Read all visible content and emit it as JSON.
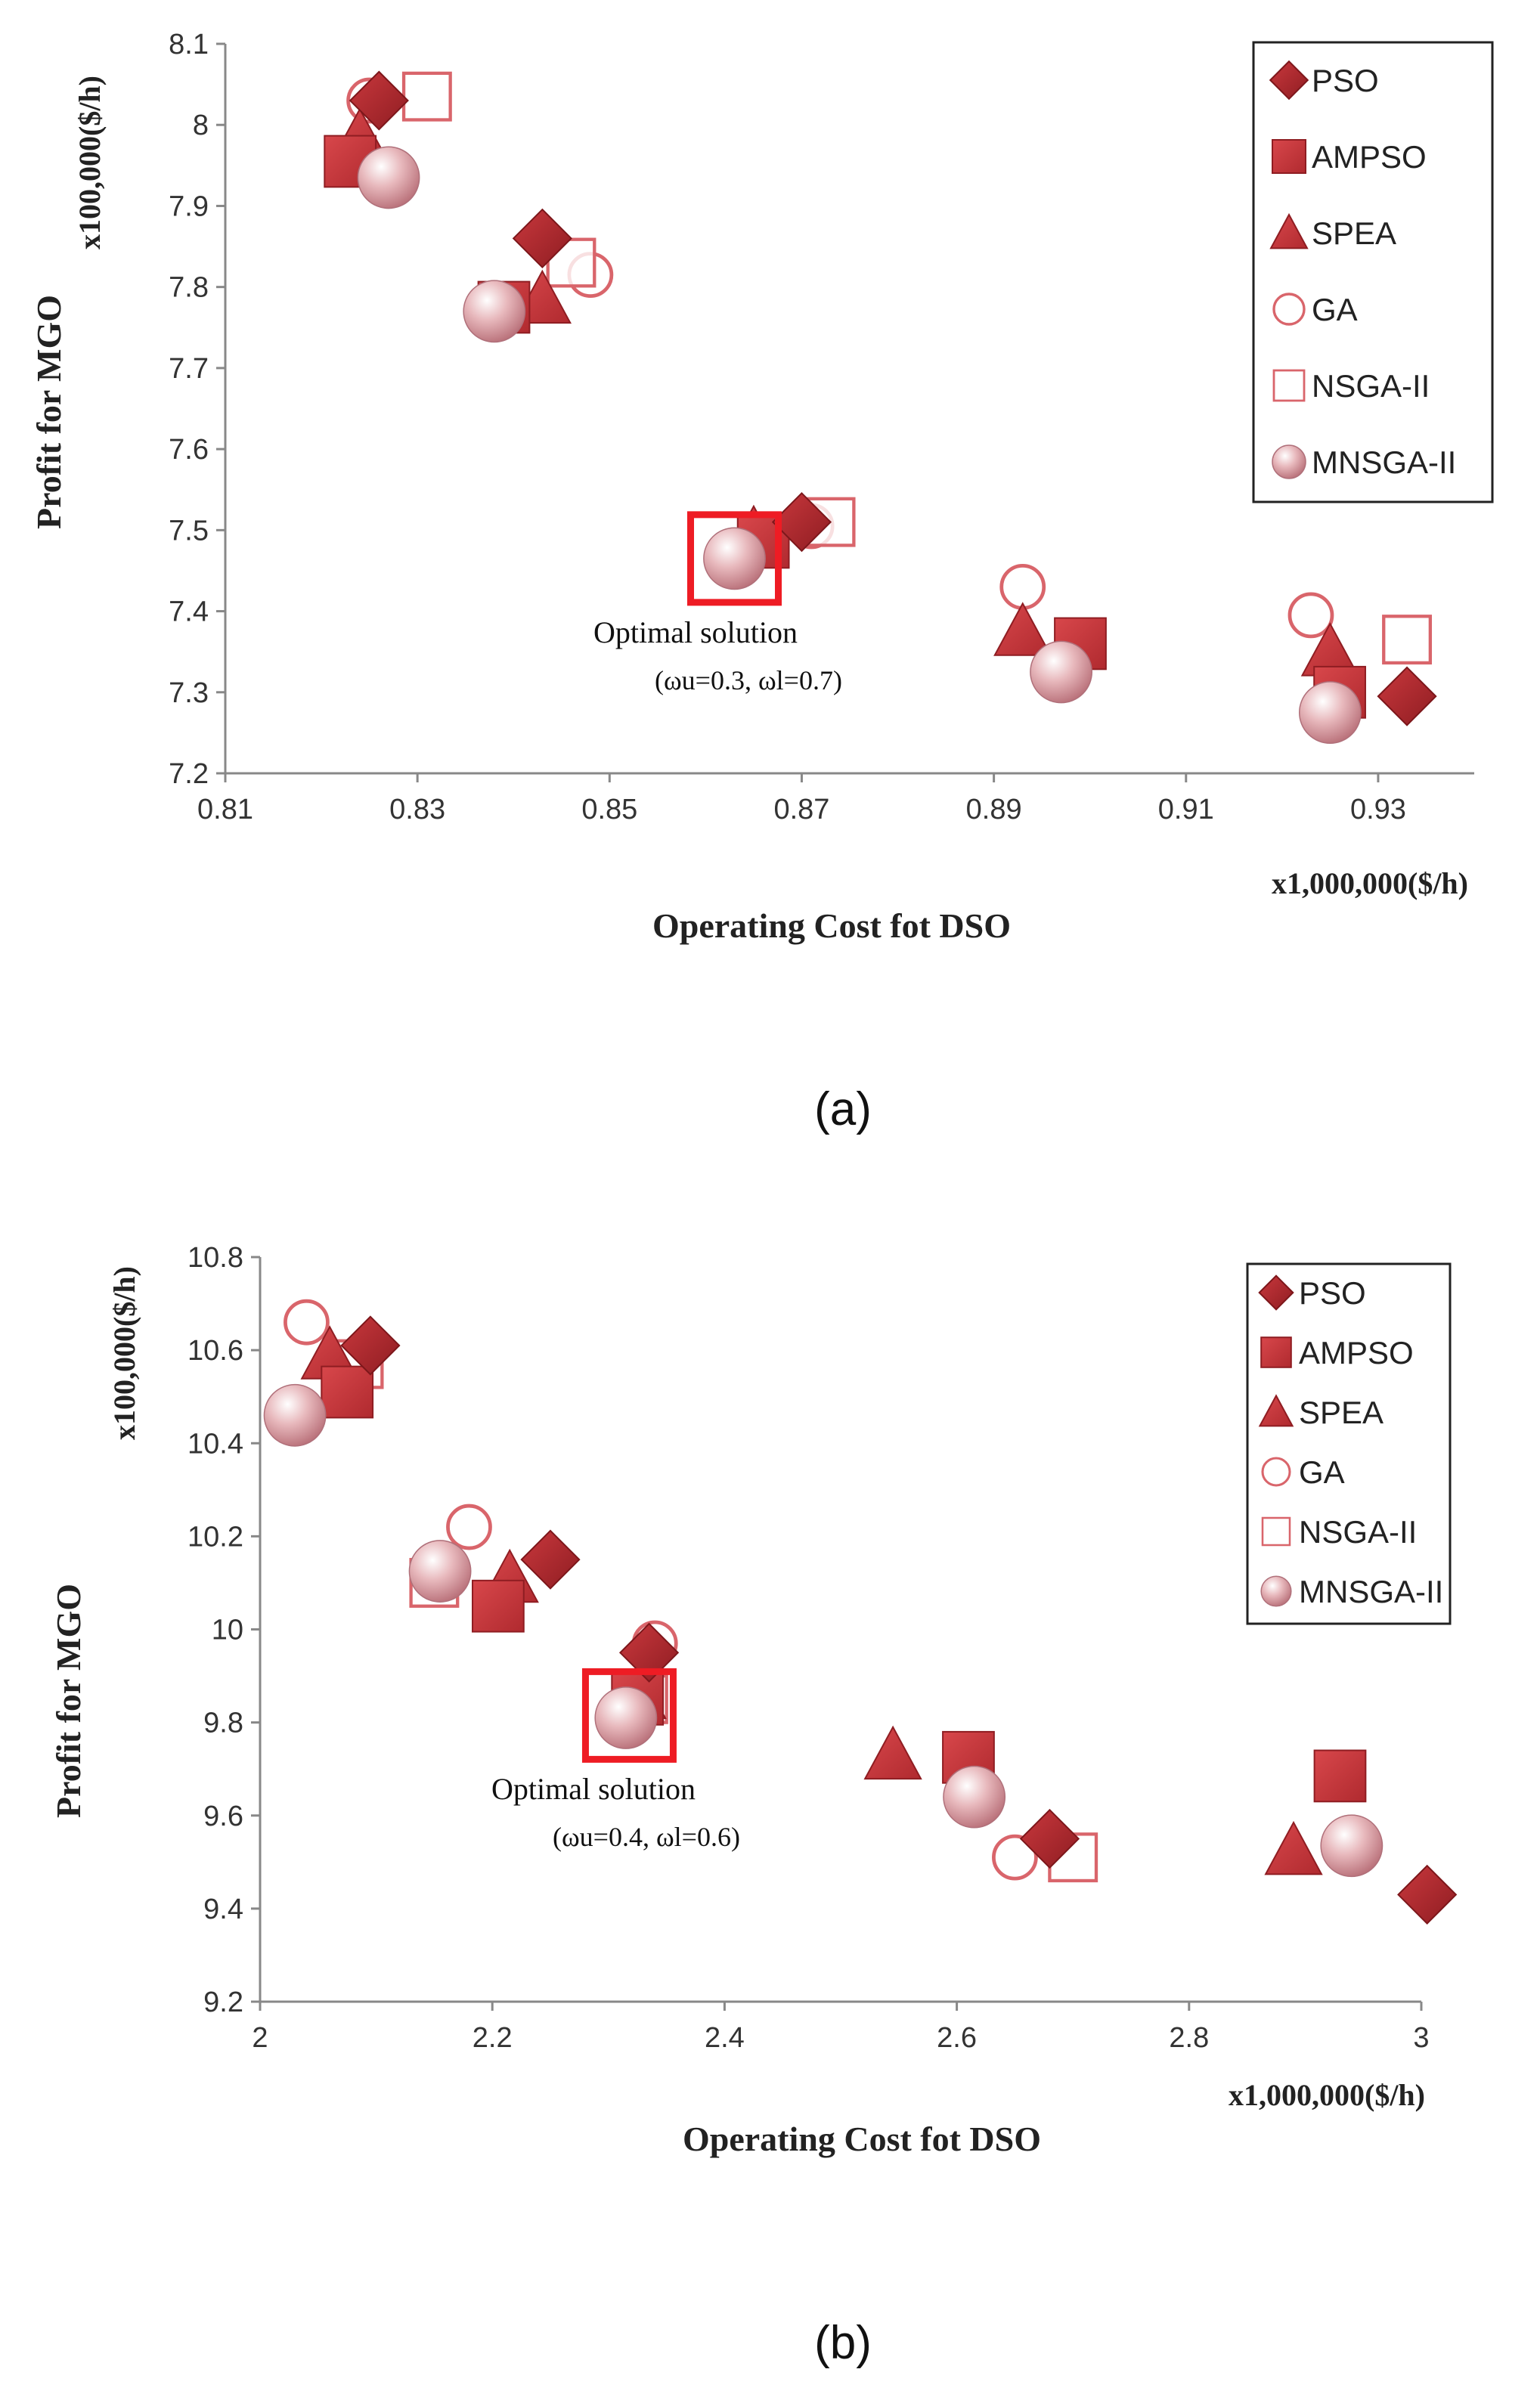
{
  "colors": {
    "dark_red": "#a7262b",
    "red": "#c93a3e",
    "pink_stroke": "#d9656b",
    "highlight": "#ee1c24"
  },
  "chart_data": [
    {
      "type": "scatter",
      "panel_label": "(a)",
      "xlabel": "Operating Cost fot DSO",
      "ylabel": "Profit for MGO",
      "x_unit": "x1,000,000($/h)",
      "y_unit": "x100,000($/h)",
      "xlim": [
        0.81,
        0.94
      ],
      "ylim": [
        7.2,
        8.1
      ],
      "x_ticks": [
        "0.81",
        "0.83",
        "0.85",
        "0.87",
        "0.89",
        "0.91",
        "0.93"
      ],
      "y_ticks": [
        "7.2",
        "7.3",
        "7.4",
        "7.5",
        "7.6",
        "7.7",
        "7.8",
        "7.9",
        "8",
        "8.1"
      ],
      "legend_position": "top-right",
      "series": [
        {
          "name": "PSO",
          "marker": "diamond",
          "points": [
            [
              0.826,
              8.03
            ],
            [
              0.843,
              7.86
            ],
            [
              0.87,
              7.51
            ],
            [
              0.933,
              7.295
            ]
          ]
        },
        {
          "name": "AMPSO",
          "marker": "square",
          "points": [
            [
              0.823,
              7.955
            ],
            [
              0.839,
              7.775
            ],
            [
              0.866,
              7.485
            ],
            [
              0.899,
              7.36
            ],
            [
              0.926,
              7.3
            ]
          ]
        },
        {
          "name": "SPEA",
          "marker": "triangle",
          "points": [
            [
              0.824,
              7.985
            ],
            [
              0.843,
              7.785
            ],
            [
              0.865,
              7.495
            ],
            [
              0.893,
              7.375
            ],
            [
              0.925,
              7.35
            ]
          ]
        },
        {
          "name": "GA",
          "marker": "circle-open",
          "points": [
            [
              0.825,
              8.03
            ],
            [
              0.848,
              7.815
            ],
            [
              0.871,
              7.505
            ],
            [
              0.893,
              7.43
            ],
            [
              0.923,
              7.395
            ]
          ]
        },
        {
          "name": "NSGA-II",
          "marker": "square-open",
          "points": [
            [
              0.831,
              8.035
            ],
            [
              0.846,
              7.83
            ],
            [
              0.873,
              7.51
            ],
            [
              0.933,
              7.365
            ]
          ]
        },
        {
          "name": "MNSGA-II",
          "marker": "sphere",
          "points": [
            [
              0.827,
              7.935
            ],
            [
              0.838,
              7.77
            ],
            [
              0.863,
              7.465
            ],
            [
              0.897,
              7.325
            ],
            [
              0.925,
              7.275
            ]
          ]
        }
      ],
      "optimal_marker": {
        "x": 0.863,
        "y": 7.465
      },
      "annotation": {
        "label": "Optimal solution",
        "weights": "(ωu=0.3, ωl=0.7)"
      }
    },
    {
      "type": "scatter",
      "panel_label": "(b)",
      "xlabel": "Operating Cost fot DSO",
      "ylabel": "Profit for MGO",
      "x_unit": "x1,000,000($/h)",
      "y_unit": "x100,000($/h)",
      "xlim": [
        2.0,
        3.0
      ],
      "ylim": [
        9.2,
        10.8
      ],
      "x_ticks": [
        "2",
        "2.2",
        "2.4",
        "2.6",
        "2.8",
        "3"
      ],
      "y_ticks": [
        "9.2",
        "9.4",
        "9.6",
        "9.8",
        "10",
        "10.2",
        "10.4",
        "10.6",
        "10.8"
      ],
      "legend_position": "top-right",
      "series": [
        {
          "name": "PSO",
          "marker": "diamond",
          "points": [
            [
              2.095,
              10.61
            ],
            [
              2.25,
              10.15
            ],
            [
              2.335,
              9.95
            ],
            [
              2.68,
              9.55
            ],
            [
              3.005,
              9.43
            ]
          ]
        },
        {
          "name": "AMPSO",
          "marker": "square",
          "points": [
            [
              2.075,
              10.51
            ],
            [
              2.205,
              10.05
            ],
            [
              2.325,
              9.85
            ],
            [
              2.61,
              9.725
            ],
            [
              2.93,
              9.685
            ]
          ]
        },
        {
          "name": "SPEA",
          "marker": "triangle",
          "points": [
            [
              2.06,
              10.59
            ],
            [
              2.215,
              10.11
            ],
            [
              2.325,
              9.86
            ],
            [
              2.545,
              9.73
            ],
            [
              2.89,
              9.525
            ]
          ]
        },
        {
          "name": "GA",
          "marker": "circle-open",
          "points": [
            [
              2.04,
              10.66
            ],
            [
              2.18,
              10.22
            ],
            [
              2.34,
              9.97
            ],
            [
              2.65,
              9.51
            ]
          ]
        },
        {
          "name": "NSGA-II",
          "marker": "square-open",
          "points": [
            [
              2.085,
              10.57
            ],
            [
              2.15,
              10.1
            ],
            [
              2.33,
              9.85
            ],
            [
              2.7,
              9.51
            ]
          ]
        },
        {
          "name": "MNSGA-II",
          "marker": "sphere",
          "points": [
            [
              2.03,
              10.46
            ],
            [
              2.155,
              10.125
            ],
            [
              2.315,
              9.81
            ],
            [
              2.615,
              9.64
            ],
            [
              2.94,
              9.535
            ]
          ]
        }
      ],
      "optimal_marker": {
        "x": 2.318,
        "y": 9.815
      },
      "annotation": {
        "label": "Optimal solution",
        "weights": "(ωu=0.4, ωl=0.6)"
      }
    }
  ]
}
